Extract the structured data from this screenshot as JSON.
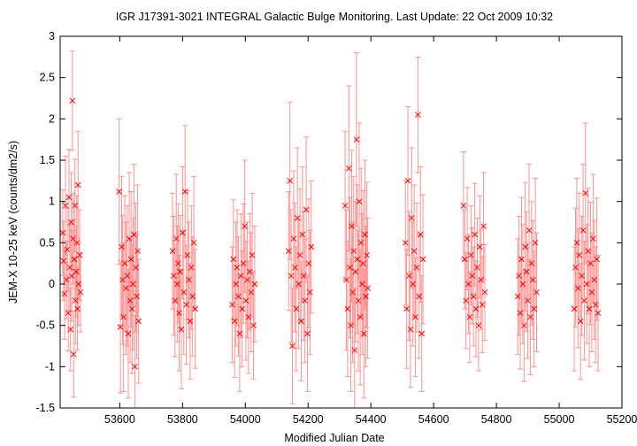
{
  "chart_data": {
    "type": "scatter",
    "title": "IGR J17391-3021   INTEGRAL Galactic Bulge Monitoring.  Last Update: 22 Oct 2009 10:32",
    "xlabel": "Modified Julian Date",
    "ylabel": "JEM-X 10-25 keV (counts/dm2/s)",
    "xlim": [
      53410,
      55200
    ],
    "ylim": [
      -1.5,
      3
    ],
    "xticks": [
      53600,
      53800,
      54000,
      54200,
      54400,
      54600,
      54800,
      55000,
      55200
    ],
    "yticks": [
      -1.5,
      -1,
      -0.5,
      0,
      0.5,
      1,
      1.5,
      2,
      2.5,
      3
    ],
    "grid": false,
    "marker": "x",
    "error_bars": true,
    "series_color": "#ff0000",
    "errorbar_color": "#ff9090",
    "points": [
      [
        53418,
        0.62,
        0.52
      ],
      [
        53421,
        0.28,
        0.48
      ],
      [
        53424,
        -0.12,
        0.55
      ],
      [
        53427,
        0.95,
        0.6
      ],
      [
        53430,
        0.05,
        0.47
      ],
      [
        53433,
        0.42,
        0.5
      ],
      [
        53436,
        -0.35,
        0.46
      ],
      [
        53438,
        1.05,
        0.58
      ],
      [
        53441,
        0.2,
        0.52
      ],
      [
        53443,
        -0.55,
        0.5
      ],
      [
        53445,
        0.75,
        0.6
      ],
      [
        53447,
        0.1,
        0.55
      ],
      [
        53449,
        2.22,
        0.6
      ],
      [
        53451,
        0.55,
        0.55
      ],
      [
        53453,
        -0.85,
        0.52
      ],
      [
        53455,
        0.3,
        0.48
      ],
      [
        53457,
        0.95,
        0.56
      ],
      [
        53459,
        -0.2,
        0.52
      ],
      [
        53461,
        0.15,
        0.55
      ],
      [
        53463,
        0.5,
        0.57
      ],
      [
        53465,
        -0.3,
        0.5
      ],
      [
        53467,
        1.2,
        0.65
      ],
      [
        53469,
        0.0,
        0.5
      ],
      [
        53472,
        0.35,
        0.55
      ],
      [
        53475,
        -0.1,
        0.48
      ],
      [
        53598,
        1.12,
        0.88
      ],
      [
        53602,
        -0.52,
        0.8
      ],
      [
        53606,
        0.45,
        0.85
      ],
      [
        53609,
        0.05,
        0.78
      ],
      [
        53612,
        -0.4,
        0.9
      ],
      [
        53616,
        0.25,
        0.82
      ],
      [
        53620,
        -0.05,
        0.8
      ],
      [
        53624,
        0.1,
        0.85
      ],
      [
        53627,
        -0.6,
        0.78
      ],
      [
        53630,
        0.55,
        0.8
      ],
      [
        53633,
        -0.2,
        0.75
      ],
      [
        53636,
        0.3,
        0.82
      ],
      [
        53639,
        -0.3,
        0.78
      ],
      [
        53642,
        0.0,
        0.8
      ],
      [
        53645,
        0.6,
        0.85
      ],
      [
        53648,
        -1.0,
        0.62
      ],
      [
        53651,
        0.2,
        0.78
      ],
      [
        53654,
        -0.15,
        0.75
      ],
      [
        53657,
        0.4,
        0.8
      ],
      [
        53660,
        -0.45,
        0.75
      ],
      [
        53768,
        0.4,
        0.7
      ],
      [
        53772,
        0.1,
        0.72
      ],
      [
        53776,
        -0.2,
        0.68
      ],
      [
        53780,
        0.55,
        0.78
      ],
      [
        53783,
        0.0,
        0.7
      ],
      [
        53786,
        0.25,
        0.72
      ],
      [
        53789,
        -0.35,
        0.7
      ],
      [
        53792,
        0.15,
        0.68
      ],
      [
        53796,
        -0.55,
        0.72
      ],
      [
        53800,
        0.62,
        0.8
      ],
      [
        53804,
        -0.1,
        0.75
      ],
      [
        53808,
        1.12,
        0.8
      ],
      [
        53812,
        -0.25,
        0.72
      ],
      [
        53816,
        0.35,
        0.78
      ],
      [
        53820,
        0.05,
        0.7
      ],
      [
        53824,
        -0.45,
        0.7
      ],
      [
        53828,
        0.2,
        0.75
      ],
      [
        53832,
        -0.15,
        0.72
      ],
      [
        53836,
        0.5,
        0.8
      ],
      [
        53840,
        -0.3,
        0.72
      ],
      [
        53958,
        -0.25,
        0.7
      ],
      [
        53962,
        0.3,
        0.72
      ],
      [
        53966,
        -0.45,
        0.68
      ],
      [
        53970,
        0.0,
        0.75
      ],
      [
        53974,
        0.2,
        0.7
      ],
      [
        53978,
        -0.15,
        0.72
      ],
      [
        53982,
        -0.6,
        0.7
      ],
      [
        53986,
        0.1,
        0.75
      ],
      [
        53990,
        -0.3,
        0.7
      ],
      [
        53994,
        0.25,
        0.72
      ],
      [
        53998,
        0.7,
        0.8
      ],
      [
        54002,
        -0.2,
        0.72
      ],
      [
        54006,
        0.05,
        0.7
      ],
      [
        54010,
        -0.4,
        0.68
      ],
      [
        54014,
        0.15,
        0.7
      ],
      [
        54018,
        -0.1,
        0.72
      ],
      [
        54022,
        0.35,
        0.75
      ],
      [
        54026,
        -0.5,
        0.65
      ],
      [
        54030,
        0.0,
        0.7
      ],
      [
        54138,
        0.4,
        0.72
      ],
      [
        54142,
        1.25,
        0.95
      ],
      [
        54146,
        0.1,
        0.8
      ],
      [
        54150,
        -0.75,
        0.7
      ],
      [
        54154,
        0.55,
        0.82
      ],
      [
        54158,
        0.2,
        0.78
      ],
      [
        54162,
        -0.3,
        0.75
      ],
      [
        54166,
        0.8,
        0.85
      ],
      [
        54170,
        0.0,
        0.78
      ],
      [
        54174,
        0.35,
        0.8
      ],
      [
        54178,
        -0.45,
        0.72
      ],
      [
        54182,
        0.6,
        0.82
      ],
      [
        54186,
        0.1,
        0.78
      ],
      [
        54190,
        -0.2,
        0.75
      ],
      [
        54194,
        0.9,
        0.88
      ],
      [
        54198,
        -0.6,
        0.7
      ],
      [
        54202,
        0.25,
        0.78
      ],
      [
        54206,
        -0.1,
        0.75
      ],
      [
        54210,
        0.45,
        0.8
      ],
      [
        54318,
        0.95,
        0.9
      ],
      [
        54322,
        0.05,
        0.85
      ],
      [
        54326,
        -0.3,
        0.82
      ],
      [
        54330,
        1.4,
        1.0
      ],
      [
        54333,
        0.2,
        0.85
      ],
      [
        54336,
        -0.5,
        0.8
      ],
      [
        54339,
        0.7,
        0.92
      ],
      [
        54342,
        -0.1,
        0.85
      ],
      [
        54345,
        0.4,
        0.9
      ],
      [
        54348,
        -0.8,
        0.75
      ],
      [
        54351,
        0.15,
        0.85
      ],
      [
        54354,
        1.75,
        1.05
      ],
      [
        54357,
        0.3,
        0.9
      ],
      [
        54360,
        -0.2,
        0.85
      ],
      [
        54363,
        1.0,
        0.95
      ],
      [
        54366,
        -0.4,
        0.82
      ],
      [
        54369,
        0.5,
        0.9
      ],
      [
        54372,
        0.0,
        0.85
      ],
      [
        54375,
        0.25,
        0.88
      ],
      [
        54378,
        -0.6,
        0.78
      ],
      [
        54381,
        0.6,
        0.9
      ],
      [
        54384,
        -0.15,
        0.85
      ],
      [
        54387,
        0.35,
        0.88
      ],
      [
        54390,
        -0.05,
        0.85
      ],
      [
        54510,
        0.5,
        0.75
      ],
      [
        54514,
        -0.3,
        0.72
      ],
      [
        54518,
        1.25,
        0.9
      ],
      [
        54522,
        0.1,
        0.78
      ],
      [
        54526,
        -0.55,
        0.7
      ],
      [
        54530,
        0.8,
        0.85
      ],
      [
        54534,
        0.0,
        0.75
      ],
      [
        54538,
        0.4,
        0.8
      ],
      [
        54542,
        -0.4,
        0.72
      ],
      [
        54546,
        0.2,
        0.78
      ],
      [
        54550,
        2.05,
        0.7
      ],
      [
        54554,
        -0.15,
        0.75
      ],
      [
        54558,
        0.6,
        0.82
      ],
      [
        54562,
        -0.6,
        0.7
      ],
      [
        54566,
        0.3,
        0.78
      ],
      [
        54695,
        0.95,
        0.65
      ],
      [
        54699,
        0.3,
        0.6
      ],
      [
        54703,
        -0.2,
        0.58
      ],
      [
        54707,
        0.55,
        0.62
      ],
      [
        54711,
        0.0,
        0.6
      ],
      [
        54715,
        -0.4,
        0.55
      ],
      [
        54719,
        0.35,
        0.6
      ],
      [
        54723,
        0.1,
        0.58
      ],
      [
        54727,
        -0.15,
        0.6
      ],
      [
        54731,
        0.6,
        0.62
      ],
      [
        54735,
        -0.3,
        0.58
      ],
      [
        54739,
        0.2,
        0.6
      ],
      [
        54743,
        -0.5,
        0.55
      ],
      [
        54747,
        0.45,
        0.62
      ],
      [
        54751,
        0.05,
        0.6
      ],
      [
        54755,
        -0.25,
        0.58
      ],
      [
        54759,
        0.7,
        0.65
      ],
      [
        54763,
        -0.1,
        0.58
      ],
      [
        54868,
        -0.15,
        0.7
      ],
      [
        54872,
        0.1,
        0.72
      ],
      [
        54876,
        -0.35,
        0.68
      ],
      [
        54880,
        0.3,
        0.75
      ],
      [
        54884,
        0.0,
        0.72
      ],
      [
        54888,
        -0.5,
        0.68
      ],
      [
        54892,
        0.45,
        0.78
      ],
      [
        54896,
        0.15,
        0.72
      ],
      [
        54900,
        -0.2,
        0.7
      ],
      [
        54904,
        0.65,
        0.8
      ],
      [
        54908,
        -0.4,
        0.7
      ],
      [
        54912,
        0.25,
        0.75
      ],
      [
        54916,
        0.05,
        0.72
      ],
      [
        54920,
        -0.3,
        0.7
      ],
      [
        54924,
        0.5,
        0.78
      ],
      [
        54928,
        -0.1,
        0.72
      ],
      [
        55048,
        -0.3,
        0.75
      ],
      [
        55052,
        0.2,
        0.72
      ],
      [
        55056,
        0.5,
        0.78
      ],
      [
        55060,
        -0.05,
        0.72
      ],
      [
        55064,
        0.35,
        0.75
      ],
      [
        55068,
        -0.45,
        0.7
      ],
      [
        55072,
        0.1,
        0.72
      ],
      [
        55076,
        0.65,
        0.8
      ],
      [
        55080,
        -0.2,
        0.72
      ],
      [
        55084,
        1.1,
        0.85
      ],
      [
        55088,
        0.0,
        0.72
      ],
      [
        55092,
        0.4,
        0.76
      ],
      [
        55096,
        -0.3,
        0.7
      ],
      [
        55100,
        0.25,
        0.74
      ],
      [
        55104,
        -0.1,
        0.72
      ],
      [
        55108,
        0.55,
        0.78
      ],
      [
        55112,
        0.05,
        0.72
      ],
      [
        55116,
        -0.25,
        0.7
      ],
      [
        55120,
        0.3,
        0.74
      ],
      [
        55124,
        -0.35,
        0.7
      ]
    ]
  }
}
